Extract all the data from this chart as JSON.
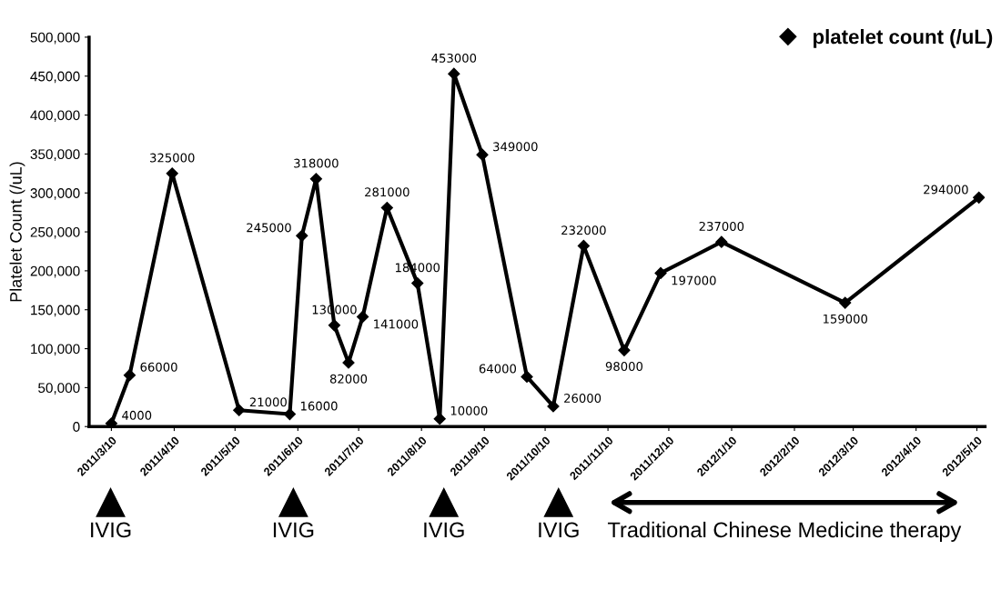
{
  "chart_data": {
    "type": "line",
    "ylabel": "Platelet Count (/uL)",
    "x": [
      "2011-03-10",
      "2011-03-19",
      "2011-04-09",
      "2011-05-12",
      "2011-06-06",
      "2011-06-12",
      "2011-06-19",
      "2011-06-28",
      "2011-07-05",
      "2011-07-12",
      "2011-07-24",
      "2011-08-08",
      "2011-08-19",
      "2011-08-26",
      "2011-09-09",
      "2011-10-01",
      "2011-10-14",
      "2011-10-29",
      "2011-11-18",
      "2011-12-06",
      "2012-01-05",
      "2012-03-06",
      "2012-05-11"
    ],
    "series": [
      {
        "name": "platelet count (/uL)",
        "color": "#000000",
        "values": [
          4000,
          66000,
          325000,
          21000,
          16000,
          245000,
          318000,
          130000,
          82000,
          141000,
          281000,
          184000,
          10000,
          453000,
          349000,
          64000,
          26000,
          232000,
          98000,
          197000,
          237000,
          159000,
          294000
        ]
      }
    ],
    "marker": "diamond",
    "data_labels": true,
    "legend": "top right",
    "grid": false,
    "ylim": [
      0,
      500000
    ],
    "yticks": [
      {
        "value": 0,
        "label": "0"
      },
      {
        "value": 50000,
        "label": "50,000"
      },
      {
        "value": 100000,
        "label": "100,000"
      },
      {
        "value": 150000,
        "label": "150,000"
      },
      {
        "value": 200000,
        "label": "200,000"
      },
      {
        "value": 250000,
        "label": "250,000"
      },
      {
        "value": 300000,
        "label": "300,000"
      },
      {
        "value": 350000,
        "label": "350,000"
      },
      {
        "value": 400000,
        "label": "400,000"
      },
      {
        "value": 450000,
        "label": "450,000"
      },
      {
        "value": 500000,
        "label": "500,000"
      }
    ],
    "xlim": [
      "2011-02-27",
      "2012-05-14"
    ],
    "xticks": [
      {
        "value": "2011-03-10",
        "label": "2011/3/10"
      },
      {
        "value": "2011-04-10",
        "label": "2011/4/10"
      },
      {
        "value": "2011-05-10",
        "label": "2011/5/10"
      },
      {
        "value": "2011-06-10",
        "label": "2011/6/10"
      },
      {
        "value": "2011-07-10",
        "label": "2011/7/10"
      },
      {
        "value": "2011-08-10",
        "label": "2011/8/10"
      },
      {
        "value": "2011-09-10",
        "label": "2011/9/10"
      },
      {
        "value": "2011-10-10",
        "label": "2011/10/10"
      },
      {
        "value": "2011-11-10",
        "label": "2011/11/10"
      },
      {
        "value": "2011-12-10",
        "label": "2011/12/10"
      },
      {
        "value": "2012-01-10",
        "label": "2012/1/10"
      },
      {
        "value": "2012-02-10",
        "label": "2012/2/10"
      },
      {
        "value": "2012-03-10",
        "label": "2012/3/10"
      },
      {
        "value": "2012-04-10",
        "label": "2012/4/10"
      },
      {
        "value": "2012-05-10",
        "label": "2012/5/10"
      }
    ],
    "annotations": [
      "IVIG",
      "IVIG",
      "IVIG",
      "IVIG",
      "Traditional Chinese Medicine therapy"
    ]
  }
}
